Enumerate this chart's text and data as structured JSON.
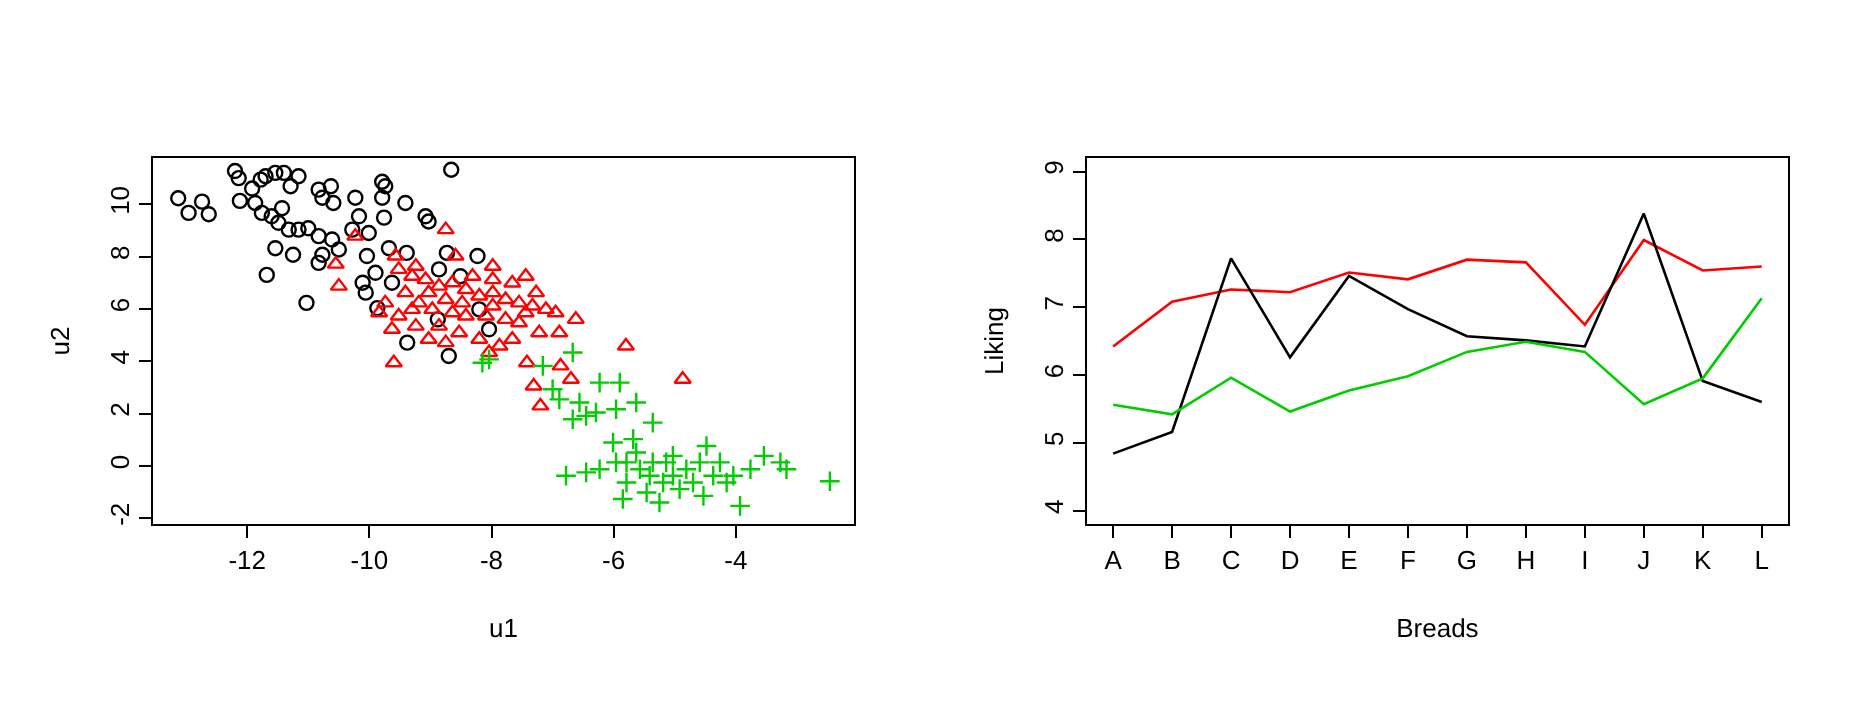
{
  "chart_data": [
    {
      "type": "scatter",
      "xlabel": "u1",
      "ylabel": "u2",
      "xlim": [
        -13.54,
        -2.07
      ],
      "ylim": [
        -2.23,
        11.77
      ],
      "xticks": [
        -12,
        -10,
        -8,
        -6,
        -4
      ],
      "yticks": [
        -2,
        0,
        2,
        4,
        6,
        8,
        10
      ],
      "series": [
        {
          "color": "#000000",
          "marker": "circle",
          "x": [
            -13.13,
            -12.96,
            -12.74,
            -12.63,
            -12.2,
            -12.14,
            -12.12,
            -11.92,
            -11.78,
            -11.7,
            -11.54,
            -11.4,
            -11.16,
            -11.29,
            -11.87,
            -11.76,
            -11.6,
            -11.43,
            -11.49,
            -11.32,
            -11.16,
            -11.0,
            -11.54,
            -11.25,
            -11.68,
            -11.03,
            -10.83,
            -10.77,
            -10.63,
            -10.59,
            -10.23,
            -10.17,
            -10.83,
            -10.61,
            -10.5,
            -10.77,
            -10.83,
            -10.28,
            -10.01,
            -10.04,
            -10.11,
            -10.06,
            -9.87,
            -9.79,
            -9.74,
            -9.79,
            -9.76,
            -9.68,
            -9.41,
            -9.08,
            -9.03,
            -8.66,
            -9.39,
            -8.73,
            -8.86,
            -8.23,
            -8.51,
            -8.2,
            -8.04,
            -8.7,
            -9.38,
            -8.88,
            -9.63,
            -9.9
          ],
          "values": [
            10.23,
            9.67,
            10.1,
            9.62,
            11.27,
            11.0,
            10.13,
            10.6,
            10.94,
            11.07,
            11.2,
            11.2,
            11.07,
            10.69,
            10.05,
            9.67,
            9.54,
            9.85,
            9.29,
            9.03,
            9.03,
            9.08,
            8.32,
            8.07,
            7.3,
            6.23,
            10.56,
            10.25,
            10.69,
            10.05,
            10.25,
            9.54,
            8.78,
            8.65,
            8.27,
            8.07,
            7.76,
            9.03,
            8.9,
            8.02,
            7.0,
            6.62,
            6.03,
            10.86,
            10.69,
            10.25,
            9.49,
            8.32,
            10.05,
            9.54,
            9.34,
            11.32,
            8.14,
            8.14,
            7.51,
            8.02,
            7.25,
            5.98,
            5.22,
            4.2,
            4.71,
            5.6,
            7.0,
            7.38
          ]
        },
        {
          "color": "#ff0000",
          "marker": "triangle",
          "x": [
            -8.75,
            -10.23,
            -10.55,
            -10.5,
            -9.84,
            -9.63,
            -9.6,
            -5.8,
            -4.87,
            -6.62,
            -6.89,
            -7.44,
            -7.27,
            -7.98,
            -8.59,
            -7.87,
            -7.2,
            -7.42,
            -7.31,
            -6.87,
            -6.7,
            -8.04,
            -8.75,
            -9.03,
            -9.3,
            -9.52,
            -9.24,
            -9.08,
            -8.86,
            -8.64,
            -8.42,
            -8.2,
            -7.98,
            -7.77,
            -7.55,
            -7.33,
            -7.11,
            -6.95,
            -9.41,
            -9.19,
            -8.97,
            -8.64,
            -8.42,
            -8.09,
            -7.77,
            -7.55,
            -9.52,
            -9.24,
            -8.53,
            -8.2,
            -7.66,
            -7.22,
            -9.03,
            -8.75,
            -8.48,
            -8.31,
            -7.98,
            -7.66,
            -7.44,
            -9.3,
            -8.86,
            -7.98,
            -9.74,
            -9.57
          ],
          "values": [
            9.03,
            8.78,
            7.71,
            6.87,
            5.85,
            5.22,
            3.94,
            4.58,
            3.31,
            5.6,
            5.09,
            7.25,
            6.62,
            7.63,
            8.02,
            4.58,
            2.29,
            3.94,
            3.05,
            3.82,
            3.31,
            4.33,
            4.71,
            4.84,
            7.25,
            7.51,
            7.63,
            7.12,
            6.87,
            7.0,
            6.74,
            6.49,
            6.62,
            6.36,
            6.23,
            6.11,
            5.98,
            5.85,
            6.62,
            6.23,
            5.98,
            5.85,
            5.73,
            5.73,
            5.6,
            5.47,
            5.73,
            5.34,
            5.09,
            4.84,
            4.84,
            5.09,
            6.62,
            6.36,
            6.23,
            7.25,
            7.12,
            6.99,
            5.85,
            5.98,
            5.34,
            6.11,
            6.23,
            8.02
          ]
        },
        {
          "color": "#00cd00",
          "marker": "cross",
          "x": [
            -8.15,
            -8.04,
            -7.16,
            -6.67,
            -6.23,
            -5.9,
            -5.63,
            -5.36,
            -5.96,
            -6.29,
            -6.67,
            -6.89,
            -7.0,
            -6.01,
            -5.68,
            -6.78,
            -6.45,
            -6.23,
            -5.96,
            -5.79,
            -5.57,
            -5.36,
            -5.19,
            -5.03,
            -5.25,
            -5.46,
            -4.81,
            -4.59,
            -4.48,
            -4.37,
            -4.26,
            -4.04,
            -3.93,
            -3.76,
            -3.54,
            -3.27,
            -3.17,
            -2.46,
            -5.79,
            -5.63,
            -5.41,
            -5.03,
            -4.7,
            -4.53,
            -4.15,
            -5.14,
            -4.92,
            -5.85,
            -6.45,
            -6.56
          ],
          "values": [
            3.94,
            4.07,
            3.82,
            4.33,
            3.18,
            3.18,
            2.42,
            1.65,
            2.16,
            2.04,
            1.78,
            2.54,
            2.93,
            0.89,
            1.02,
            -0.38,
            -0.25,
            -0.13,
            0.13,
            -0.64,
            -0.13,
            0.13,
            -0.64,
            0.38,
            -1.4,
            -1.02,
            -0.13,
            0.13,
            0.76,
            -0.38,
            0.13,
            -0.38,
            -1.53,
            -0.13,
            0.38,
            0.13,
            -0.13,
            -0.59,
            0.13,
            0.51,
            -0.38,
            -0.38,
            -0.64,
            -1.15,
            -0.64,
            0.13,
            -0.89,
            -1.27,
            1.91,
            2.42
          ]
        }
      ]
    },
    {
      "type": "line",
      "xlabel": "Breads",
      "ylabel": "Liking",
      "categories": [
        "A",
        "B",
        "C",
        "D",
        "E",
        "F",
        "G",
        "H",
        "I",
        "J",
        "K",
        "L"
      ],
      "ylim": [
        3.8,
        9.2
      ],
      "yticks": [
        4,
        5,
        6,
        7,
        8,
        9
      ],
      "series": [
        {
          "color": "#ff0000",
          "values": [
            6.42,
            7.08,
            7.26,
            7.22,
            7.51,
            7.41,
            7.7,
            7.66,
            6.74,
            7.99,
            7.54,
            7.6
          ]
        },
        {
          "color": "#000000",
          "values": [
            4.84,
            5.16,
            7.72,
            6.26,
            7.46,
            6.97,
            6.57,
            6.51,
            6.42,
            8.38,
            5.91,
            5.6
          ]
        },
        {
          "color": "#00cd00",
          "values": [
            5.56,
            5.42,
            5.96,
            5.46,
            5.77,
            5.98,
            6.34,
            6.49,
            6.34,
            5.57,
            5.95,
            7.13
          ]
        }
      ]
    }
  ]
}
